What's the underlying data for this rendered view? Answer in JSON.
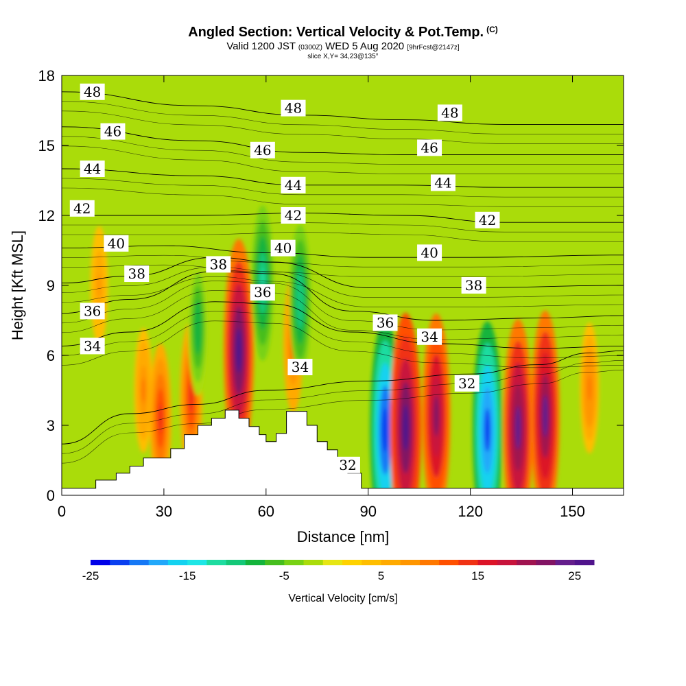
{
  "header": {
    "title_main": "Angled Section: Vertical Velocity & Pot.Temp.",
    "title_copyright": "(C)",
    "valid_prefix": "Valid 1200 JST",
    "valid_utc": "(0300Z)",
    "valid_date": "WED 5 Aug 2020",
    "forecast": "[9hrFcst@2147z]",
    "slice": "slice X,Y= 34,23@135°"
  },
  "colorbar": {
    "title": "Vertical Velocity [cm/s]",
    "tick_labels": [
      "-25",
      "-15",
      "-5",
      "5",
      "15",
      "25"
    ],
    "colors": [
      "#0000e8",
      "#0a3ff0",
      "#1678f5",
      "#22a8fa",
      "#14d2f0",
      "#1ee6e6",
      "#1edca0",
      "#14c878",
      "#14b43c",
      "#46be1e",
      "#78d214",
      "#aadc0a",
      "#e6e614",
      "#ffd200",
      "#ffbe00",
      "#ffaa00",
      "#ff9600",
      "#ff7800",
      "#ff5000",
      "#f03214",
      "#dc1428",
      "#c8143c",
      "#a01450",
      "#821464",
      "#641e8c",
      "#50148c"
    ]
  },
  "chart_data": {
    "type": "heatmap",
    "title": "Angled Section: Vertical Velocity & Pot.Temp.",
    "xlabel": "Distance [nm]",
    "ylabel": "Height [Kft MSL]",
    "xlim": [
      0,
      165
    ],
    "ylim": [
      0,
      18
    ],
    "xticks": [
      0,
      30,
      60,
      90,
      120,
      150
    ],
    "yticks": [
      0,
      3,
      6,
      9,
      12,
      15,
      18
    ],
    "x_tick_labels": [
      "0",
      "30",
      "60",
      "90",
      "120",
      "150"
    ],
    "y_tick_labels": [
      "0",
      "3",
      "6",
      "9",
      "12",
      "15",
      "18"
    ],
    "background_color": "#aadc0a",
    "terrain": [
      [
        0,
        0.3
      ],
      [
        10,
        0.3
      ],
      [
        10,
        0.65
      ],
      [
        16,
        0.65
      ],
      [
        16,
        0.95
      ],
      [
        20,
        0.95
      ],
      [
        20,
        1.25
      ],
      [
        24,
        1.25
      ],
      [
        24,
        1.6
      ],
      [
        32,
        1.6
      ],
      [
        32,
        2.0
      ],
      [
        36,
        2.0
      ],
      [
        36,
        2.6
      ],
      [
        40,
        2.6
      ],
      [
        40,
        3.0
      ],
      [
        44,
        3.0
      ],
      [
        44,
        3.3
      ],
      [
        48,
        3.3
      ],
      [
        48,
        3.65
      ],
      [
        52,
        3.65
      ],
      [
        52,
        3.3
      ],
      [
        55,
        3.3
      ],
      [
        55,
        2.95
      ],
      [
        58,
        2.95
      ],
      [
        58,
        2.6
      ],
      [
        60,
        2.6
      ],
      [
        60,
        2.3
      ],
      [
        63,
        2.3
      ],
      [
        63,
        2.65
      ],
      [
        66,
        2.65
      ],
      [
        66,
        3.6
      ],
      [
        72,
        3.6
      ],
      [
        72,
        3.0
      ],
      [
        75,
        3.0
      ],
      [
        75,
        2.3
      ],
      [
        78,
        2.3
      ],
      [
        78,
        1.95
      ],
      [
        81,
        1.95
      ],
      [
        81,
        1.6
      ],
      [
        84,
        1.6
      ],
      [
        84,
        0.95
      ],
      [
        88,
        0.95
      ],
      [
        88,
        0.3
      ],
      [
        165,
        0.3
      ]
    ],
    "vertical_velocity_cells": [
      {
        "x": 11,
        "y": 9,
        "value": 7
      },
      {
        "x": 24,
        "y": 4.5,
        "value": 8
      },
      {
        "x": 29,
        "y": 3.3,
        "value": 12
      },
      {
        "x": 38,
        "y": 4.2,
        "value": 13
      },
      {
        "x": 52,
        "y": 6.2,
        "value": 24
      },
      {
        "x": 68,
        "y": 6.5,
        "value": 10
      },
      {
        "x": 95,
        "y": 2.8,
        "value": -24
      },
      {
        "x": 101,
        "y": 2.9,
        "value": 25
      },
      {
        "x": 110,
        "y": 3.4,
        "value": 21
      },
      {
        "x": 125,
        "y": 2.8,
        "value": -23
      },
      {
        "x": 134,
        "y": 2.9,
        "value": 23
      },
      {
        "x": 142,
        "y": 3.4,
        "value": 22
      },
      {
        "x": 155,
        "y": 4.6,
        "value": 9
      },
      {
        "x": 59,
        "y": 9.1,
        "value": -13
      },
      {
        "x": 70,
        "y": 8.4,
        "value": -12
      },
      {
        "x": 40,
        "y": 7.2,
        "value": -10
      }
    ],
    "isentropes": [
      {
        "theta": 32,
        "points": [
          [
            0,
            2.2
          ],
          [
            20,
            3.5
          ],
          [
            40,
            3.9
          ],
          [
            60,
            4.5
          ],
          [
            90,
            4.9
          ],
          [
            120,
            5.2
          ],
          [
            140,
            5.6
          ],
          [
            155,
            6.1
          ],
          [
            165,
            6.2
          ]
        ]
      },
      {
        "theta": 34,
        "points": [
          [
            0,
            6.4
          ],
          [
            20,
            7.0
          ],
          [
            45,
            8.3
          ],
          [
            62,
            8.2
          ],
          [
            85,
            7.0
          ],
          [
            110,
            6.5
          ],
          [
            140,
            6.3
          ],
          [
            165,
            6.4
          ]
        ]
      },
      {
        "theta": 36,
        "points": [
          [
            0,
            7.8
          ],
          [
            20,
            8.4
          ],
          [
            45,
            9.6
          ],
          [
            62,
            9.5
          ],
          [
            85,
            7.9
          ],
          [
            110,
            7.5
          ],
          [
            140,
            7.6
          ],
          [
            165,
            7.7
          ]
        ]
      },
      {
        "theta": 38,
        "points": [
          [
            0,
            9.1
          ],
          [
            20,
            9.4
          ],
          [
            45,
            10.2
          ],
          [
            62,
            10.0
          ],
          [
            90,
            8.9
          ],
          [
            120,
            8.9
          ],
          [
            165,
            9.0
          ]
        ]
      },
      {
        "theta": 40,
        "points": [
          [
            0,
            10.6
          ],
          [
            30,
            10.7
          ],
          [
            60,
            10.4
          ],
          [
            90,
            10.2
          ],
          [
            120,
            10.2
          ],
          [
            165,
            10.3
          ]
        ]
      },
      {
        "theta": 42,
        "points": [
          [
            0,
            12.0
          ],
          [
            40,
            12.0
          ],
          [
            70,
            12.1
          ],
          [
            100,
            12.0
          ],
          [
            130,
            11.7
          ],
          [
            165,
            11.7
          ]
        ]
      },
      {
        "theta": 44,
        "points": [
          [
            0,
            14.0
          ],
          [
            40,
            13.7
          ],
          [
            70,
            13.3
          ],
          [
            100,
            13.3
          ],
          [
            130,
            13.2
          ],
          [
            165,
            13.2
          ]
        ]
      },
      {
        "theta": 46,
        "points": [
          [
            0,
            15.8
          ],
          [
            40,
            15.2
          ],
          [
            70,
            14.7
          ],
          [
            100,
            14.6
          ],
          [
            130,
            14.6
          ],
          [
            165,
            14.6
          ]
        ]
      },
      {
        "theta": 48,
        "points": [
          [
            0,
            17.3
          ],
          [
            40,
            16.7
          ],
          [
            70,
            16.3
          ],
          [
            100,
            16.1
          ],
          [
            130,
            15.9
          ],
          [
            165,
            15.9
          ]
        ]
      }
    ],
    "contour_labels": [
      {
        "text": "48",
        "x": 9,
        "y": 17.3
      },
      {
        "text": "46",
        "x": 15,
        "y": 15.6
      },
      {
        "text": "44",
        "x": 9,
        "y": 14.0
      },
      {
        "text": "42",
        "x": 6,
        "y": 12.3
      },
      {
        "text": "40",
        "x": 16,
        "y": 10.8
      },
      {
        "text": "38",
        "x": 22,
        "y": 9.5
      },
      {
        "text": "36",
        "x": 9,
        "y": 7.9
      },
      {
        "text": "34",
        "x": 9,
        "y": 6.4
      },
      {
        "text": "48",
        "x": 68,
        "y": 16.6
      },
      {
        "text": "46",
        "x": 59,
        "y": 14.8
      },
      {
        "text": "44",
        "x": 68,
        "y": 13.3
      },
      {
        "text": "42",
        "x": 68,
        "y": 12.0
      },
      {
        "text": "40",
        "x": 65,
        "y": 10.6
      },
      {
        "text": "38",
        "x": 46,
        "y": 9.9
      },
      {
        "text": "36",
        "x": 59,
        "y": 8.7
      },
      {
        "text": "34",
        "x": 70,
        "y": 5.5
      },
      {
        "text": "32",
        "x": 84,
        "y": 1.3
      },
      {
        "text": "48",
        "x": 114,
        "y": 16.4
      },
      {
        "text": "46",
        "x": 108,
        "y": 14.9
      },
      {
        "text": "44",
        "x": 112,
        "y": 13.4
      },
      {
        "text": "42",
        "x": 125,
        "y": 11.8
      },
      {
        "text": "40",
        "x": 108,
        "y": 10.4
      },
      {
        "text": "38",
        "x": 121,
        "y": 9.0
      },
      {
        "text": "36",
        "x": 95,
        "y": 7.4
      },
      {
        "text": "34",
        "x": 108,
        "y": 6.8
      },
      {
        "text": "32",
        "x": 119,
        "y": 4.8
      }
    ]
  }
}
